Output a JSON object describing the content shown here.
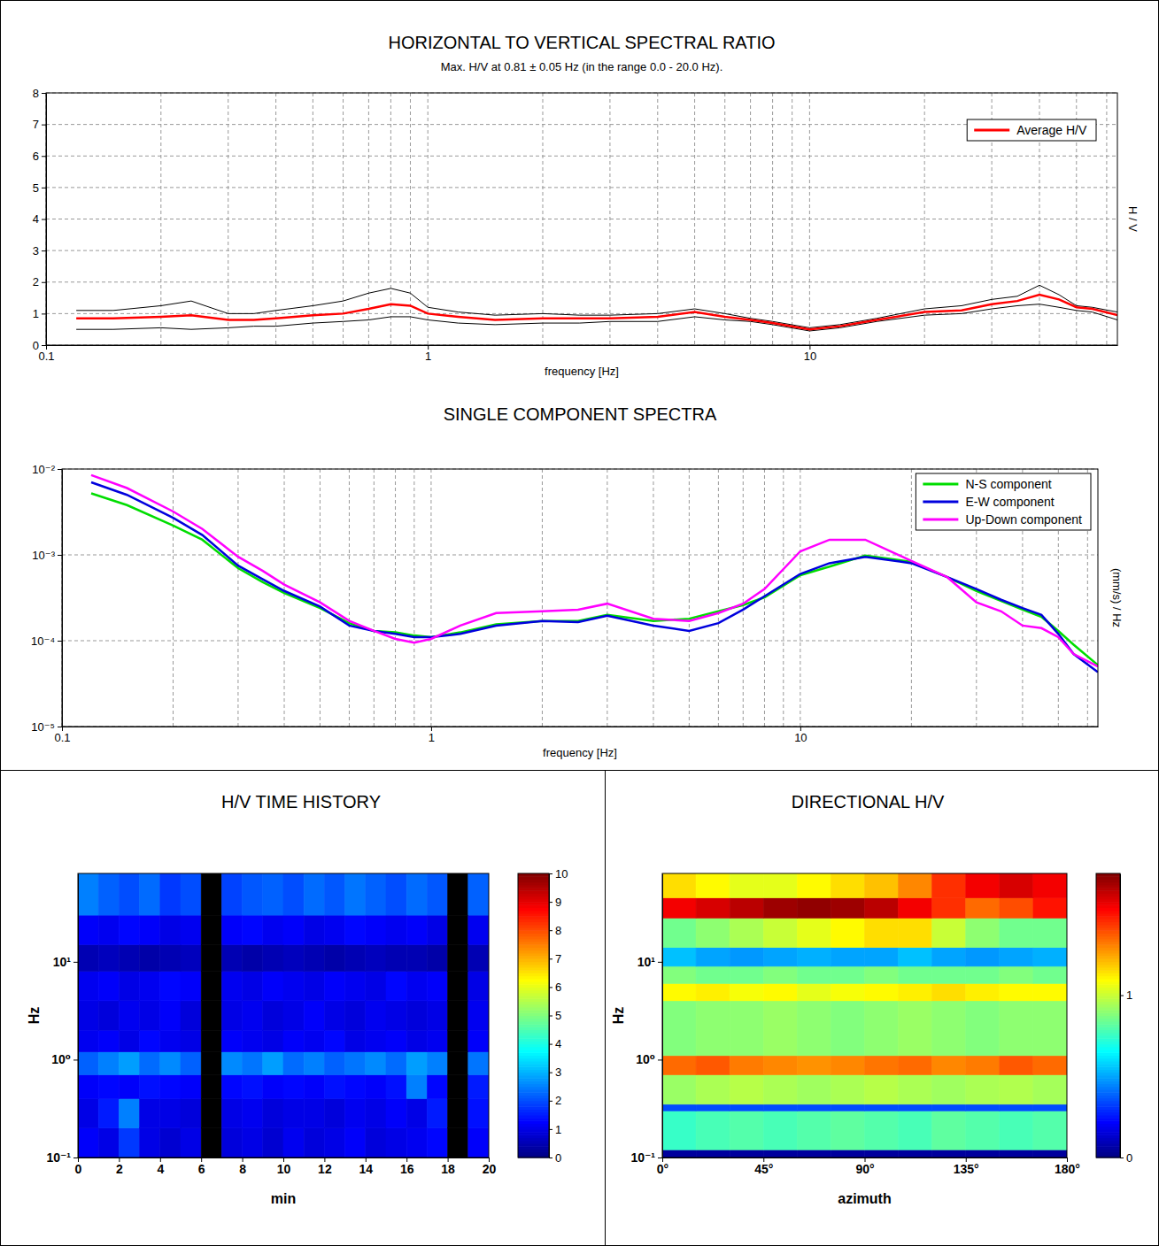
{
  "chart_data": [
    {
      "type": "line",
      "title": "HORIZONTAL TO VERTICAL SPECTRAL RATIO",
      "subtitle": "Max. H/V at 0.81 ± 0.05 Hz (in the range 0.0 - 20.0 Hz).",
      "x_label": "frequency [Hz]",
      "y_label": "H / V",
      "x": [
        0.12,
        0.15,
        0.2,
        0.24,
        0.3,
        0.35,
        0.4,
        0.5,
        0.6,
        0.7,
        0.8,
        0.9,
        1,
        1.2,
        1.5,
        2,
        2.5,
        3,
        4,
        5,
        6,
        7,
        8,
        10,
        12,
        15,
        20,
        25,
        30,
        35,
        40,
        45,
        50,
        55,
        64
      ],
      "series": [
        {
          "name": "Average H/V",
          "color": "#ff0000",
          "values": [
            0.85,
            0.85,
            0.9,
            0.95,
            0.8,
            0.8,
            0.85,
            0.95,
            1.0,
            1.15,
            1.3,
            1.25,
            1.0,
            0.9,
            0.8,
            0.85,
            0.85,
            0.85,
            0.9,
            1.05,
            0.9,
            0.8,
            0.7,
            0.5,
            0.6,
            0.8,
            1.05,
            1.1,
            1.3,
            1.4,
            1.6,
            1.45,
            1.2,
            1.15,
            0.95
          ]
        },
        {
          "color": "#000000",
          "values": [
            1.1,
            1.1,
            1.25,
            1.4,
            1.0,
            1.0,
            1.1,
            1.25,
            1.4,
            1.65,
            1.8,
            1.65,
            1.2,
            1.05,
            0.95,
            1.0,
            0.95,
            0.95,
            1.0,
            1.15,
            1.0,
            0.85,
            0.75,
            0.55,
            0.65,
            0.85,
            1.15,
            1.25,
            1.45,
            1.55,
            1.9,
            1.6,
            1.25,
            1.2,
            1.05
          ]
        },
        {
          "color": "#000000",
          "values": [
            0.5,
            0.5,
            0.55,
            0.5,
            0.55,
            0.6,
            0.6,
            0.7,
            0.75,
            0.8,
            0.9,
            0.9,
            0.8,
            0.7,
            0.65,
            0.7,
            0.7,
            0.75,
            0.75,
            0.9,
            0.8,
            0.75,
            0.65,
            0.45,
            0.55,
            0.75,
            0.95,
            1.0,
            1.15,
            1.25,
            1.3,
            1.2,
            1.1,
            1.05,
            0.8
          ]
        }
      ],
      "xlim": [
        0.1,
        64
      ],
      "xticks": [
        0.1,
        1,
        10
      ],
      "xgrid_minor": [
        0.2,
        0.3,
        0.4,
        0.5,
        0.6,
        0.7,
        0.8,
        0.9,
        2,
        3,
        4,
        5,
        6,
        7,
        8,
        9,
        20,
        30,
        40,
        50,
        60
      ],
      "ylim": [
        0,
        8
      ],
      "yticks": [
        0,
        1,
        2,
        3,
        4,
        5,
        6,
        7,
        8
      ],
      "log": "x",
      "grid": true,
      "legend": "top-right"
    },
    {
      "type": "line",
      "title": "SINGLE COMPONENT SPECTRA",
      "x_label": "frequency [Hz]",
      "y_label": "(mm/s) / Hz",
      "x": [
        0.12,
        0.15,
        0.2,
        0.24,
        0.3,
        0.35,
        0.4,
        0.5,
        0.6,
        0.7,
        0.8,
        0.9,
        1,
        1.2,
        1.5,
        2,
        2.5,
        3,
        4,
        5,
        6,
        7,
        8,
        10,
        12,
        15,
        20,
        25,
        30,
        35,
        40,
        45,
        50,
        55,
        64
      ],
      "series": [
        {
          "name": "N-S component",
          "color": "#00dd00",
          "values": [
            0.0052,
            0.0038,
            0.0022,
            0.0015,
            0.0007,
            0.00048,
            0.00036,
            0.00024,
            0.00016,
            0.00013,
            0.000125,
            0.000115,
            0.00011,
            0.000125,
            0.000155,
            0.00017,
            0.00017,
            0.0002,
            0.00017,
            0.00018,
            0.00022,
            0.00026,
            0.00032,
            0.00058,
            0.00073,
            0.00098,
            0.00083,
            0.00055,
            0.00038,
            0.00029,
            0.00023,
            0.00019,
            0.00013,
            9e-05,
            5.2e-05
          ]
        },
        {
          "name": "E-W component",
          "color": "#0000dd",
          "values": [
            0.007,
            0.005,
            0.0027,
            0.0017,
            0.00075,
            0.00052,
            0.00038,
            0.00025,
            0.00015,
            0.00013,
            0.00012,
            0.00011,
            0.00011,
            0.00012,
            0.00015,
            0.00017,
            0.000165,
            0.000195,
            0.00015,
            0.00013,
            0.00016,
            0.00023,
            0.00033,
            0.0006,
            0.0008,
            0.00095,
            0.0008,
            0.00055,
            0.0004,
            0.0003,
            0.00024,
            0.0002,
            0.00012,
            7e-05,
            4.3e-05
          ]
        },
        {
          "name": "Up-Down component",
          "color": "#ff00ff",
          "values": [
            0.0085,
            0.006,
            0.0032,
            0.002,
            0.00095,
            0.00065,
            0.00045,
            0.00028,
            0.00017,
            0.00013,
            0.000105,
            9.5e-05,
            0.000105,
            0.00015,
            0.00021,
            0.00022,
            0.00023,
            0.00027,
            0.00018,
            0.00017,
            0.00021,
            0.00027,
            0.0004,
            0.0011,
            0.0015,
            0.0015,
            0.00085,
            0.00055,
            0.00028,
            0.00022,
            0.00015,
            0.00014,
            0.00011,
            7e-05,
            5e-05
          ]
        }
      ],
      "xlim": [
        0.1,
        64
      ],
      "xticks": [
        0.1,
        1,
        10
      ],
      "xgrid_minor": [
        0.2,
        0.3,
        0.4,
        0.5,
        0.6,
        0.7,
        0.8,
        0.9,
        2,
        3,
        4,
        5,
        6,
        7,
        8,
        9,
        20,
        30,
        40,
        50,
        60
      ],
      "ylim": [
        1e-05,
        0.01
      ],
      "yticks": [
        {
          "value": 1e-05,
          "label": "10⁻⁵"
        },
        {
          "value": 0.0001,
          "label": "10⁻⁴"
        },
        {
          "value": 0.001,
          "label": "10⁻³"
        },
        {
          "value": 0.01,
          "label": "10⁻²"
        }
      ],
      "log": true,
      "grid": true,
      "legend": "top-right"
    },
    {
      "type": "heatmap",
      "title": "H/V TIME HISTORY",
      "x_label": "min",
      "y_label": "Hz",
      "x_bins": [
        0,
        1,
        2,
        3,
        4,
        5,
        6,
        7,
        8,
        9,
        10,
        11,
        12,
        13,
        14,
        15,
        16,
        17,
        18,
        19,
        20
      ],
      "y_bins": [
        0.1,
        0.2,
        0.4,
        0.7,
        1.2,
        2,
        4,
        8,
        15,
        30,
        80
      ],
      "cells": [
        [
          1.2,
          1.0,
          1.8,
          1.0,
          0.8,
          1.0,
          null,
          0.9,
          1.0,
          0.8,
          1.1,
          0.9,
          1.0,
          1.2,
          0.9,
          1.0,
          1.1,
          1.3,
          null,
          1.2
        ],
        [
          1.0,
          1.5,
          2.5,
          1.0,
          1.0,
          0.9,
          null,
          1.0,
          1.1,
          0.9,
          1.0,
          1.0,
          0.9,
          1.1,
          1.0,
          1.2,
          1.0,
          1.5,
          null,
          1.4
        ],
        [
          1.2,
          1.3,
          1.2,
          1.4,
          1.3,
          1.2,
          null,
          1.3,
          1.4,
          1.2,
          1.3,
          1.2,
          1.4,
          1.3,
          1.2,
          1.4,
          2.5,
          1.3,
          null,
          1.5
        ],
        [
          2.2,
          2.5,
          2.8,
          2.3,
          2.6,
          2.2,
          null,
          2.6,
          2.4,
          2.8,
          2.3,
          2.5,
          2.2,
          2.4,
          2.6,
          2.3,
          2.8,
          2.5,
          null,
          2.4
        ],
        [
          1.1,
          1.2,
          1.0,
          1.3,
          1.1,
          1.0,
          null,
          1.2,
          1.1,
          1.0,
          1.2,
          1.1,
          1.3,
          1.0,
          1.1,
          1.2,
          1.0,
          1.1,
          null,
          1.2
        ],
        [
          1.0,
          0.9,
          1.1,
          1.0,
          1.2,
          0.9,
          null,
          1.0,
          1.1,
          0.9,
          1.0,
          1.2,
          1.0,
          0.9,
          1.1,
          1.0,
          0.9,
          1.0,
          null,
          1.1
        ],
        [
          1.1,
          1.2,
          1.0,
          1.1,
          1.3,
          1.2,
          null,
          1.1,
          1.0,
          1.2,
          1.1,
          1.0,
          1.2,
          1.1,
          1.0,
          1.3,
          1.1,
          1.2,
          null,
          1.0
        ],
        [
          0.5,
          0.6,
          0.5,
          0.4,
          0.5,
          0.6,
          null,
          0.5,
          0.4,
          0.5,
          0.6,
          0.5,
          0.4,
          0.5,
          0.6,
          0.5,
          0.5,
          0.4,
          null,
          0.5
        ],
        [
          1.2,
          1.1,
          1.3,
          1.2,
          1.0,
          1.1,
          null,
          1.2,
          1.3,
          1.1,
          1.2,
          1.0,
          1.1,
          1.3,
          1.2,
          1.1,
          1.2,
          1.0,
          null,
          1.1
        ],
        [
          2.5,
          2.2,
          2.0,
          2.3,
          1.8,
          2.0,
          null,
          1.9,
          2.1,
          2.2,
          2.0,
          2.3,
          2.1,
          2.4,
          2.2,
          2.0,
          2.3,
          2.1,
          null,
          2.2
        ]
      ],
      "xlim": [
        0,
        20
      ],
      "xticks": [
        0,
        2,
        4,
        6,
        8,
        10,
        12,
        14,
        16,
        18,
        20
      ],
      "ylim": [
        0.1,
        80
      ],
      "yticks": [
        {
          "value": 0.1,
          "label": "10⁻¹"
        },
        {
          "value": 1,
          "label": "10⁰"
        },
        {
          "value": 10,
          "label": "10¹"
        }
      ],
      "log": "y",
      "colorbar_range": [
        0,
        10
      ],
      "colorbar_ticks": [
        0,
        1,
        2,
        3,
        4,
        5,
        6,
        7,
        8,
        9,
        10
      ]
    },
    {
      "type": "heatmap",
      "title": "DIRECTIONAL H/V",
      "x_label": "azimuth",
      "y_label": "Hz",
      "x_bins": [
        0,
        15,
        30,
        45,
        60,
        75,
        90,
        105,
        120,
        135,
        150,
        165,
        180
      ],
      "y_bins": [
        0.1,
        0.12,
        0.3,
        0.35,
        0.7,
        1.1,
        4,
        6,
        9,
        14,
        28,
        45,
        80
      ],
      "cells": [
        [
          0.05,
          0.05,
          0.05,
          0.05,
          0.05,
          0.05,
          0.05,
          0.05,
          0.05,
          0.05,
          0.05,
          0.05
        ],
        [
          0.75,
          0.78,
          0.8,
          0.78,
          0.8,
          0.82,
          0.8,
          0.78,
          0.82,
          0.8,
          0.78,
          0.8
        ],
        [
          0.35,
          0.35,
          0.35,
          0.35,
          0.35,
          0.35,
          0.35,
          0.35,
          0.35,
          0.35,
          0.35,
          0.35
        ],
        [
          0.92,
          0.95,
          0.97,
          0.95,
          0.93,
          0.95,
          0.97,
          0.95,
          0.93,
          0.95,
          0.96,
          0.94
        ],
        [
          1.35,
          1.38,
          1.32,
          1.3,
          1.28,
          1.3,
          1.33,
          1.35,
          1.3,
          1.32,
          1.38,
          1.35
        ],
        [
          0.88,
          0.9,
          0.9,
          0.92,
          0.9,
          0.88,
          0.9,
          0.92,
          0.9,
          0.88,
          0.9,
          0.9
        ],
        [
          1.1,
          1.12,
          1.08,
          1.1,
          1.05,
          1.08,
          1.1,
          1.12,
          1.15,
          1.12,
          1.1,
          1.1
        ],
        [
          0.88,
          0.85,
          0.85,
          0.88,
          0.85,
          0.85,
          0.88,
          0.85,
          0.85,
          0.85,
          0.88,
          0.85
        ],
        [
          0.55,
          0.5,
          0.48,
          0.5,
          0.52,
          0.5,
          0.5,
          0.55,
          0.5,
          0.48,
          0.5,
          0.52
        ],
        [
          0.85,
          0.9,
          0.95,
          1.0,
          1.05,
          1.1,
          1.15,
          1.15,
          1.0,
          0.9,
          0.85,
          0.85
        ],
        [
          1.55,
          1.6,
          1.65,
          1.7,
          1.72,
          1.7,
          1.65,
          1.55,
          1.45,
          1.35,
          1.4,
          1.5
        ],
        [
          1.15,
          1.1,
          1.05,
          1.05,
          1.1,
          1.15,
          1.2,
          1.3,
          1.45,
          1.55,
          1.6,
          1.55
        ]
      ],
      "xlim": [
        0,
        180
      ],
      "xticks": [
        {
          "value": 0,
          "label": "0°"
        },
        {
          "value": 45,
          "label": "45°"
        },
        {
          "value": 90,
          "label": "90°"
        },
        {
          "value": 135,
          "label": "135°"
        },
        {
          "value": 180,
          "label": "180°"
        }
      ],
      "ylim": [
        0.1,
        80
      ],
      "yticks": [
        {
          "value": 0.1,
          "label": "10⁻¹"
        },
        {
          "value": 1,
          "label": "10⁰"
        },
        {
          "value": 10,
          "label": "10¹"
        }
      ],
      "log": "y",
      "colorbar_range": [
        0,
        1.75
      ],
      "colorbar_ticks": [
        0,
        1
      ]
    }
  ]
}
